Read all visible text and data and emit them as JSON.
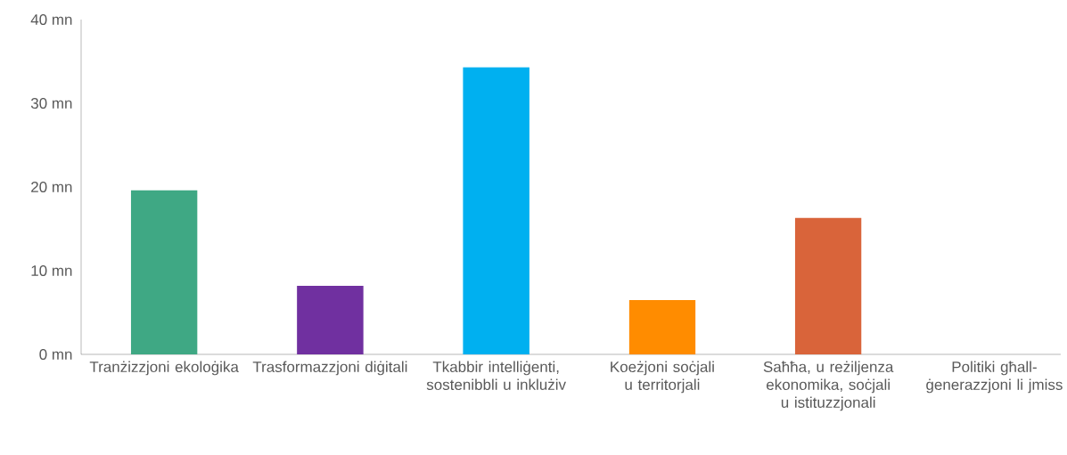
{
  "chart_data": {
    "type": "bar",
    "categories": [
      "Tranżizzjoni ekoloġika",
      "Trasformazzjoni diġitali",
      "Tkabbir intelliġenti, sostenibbli u inklużiv",
      "Koeżjoni soċjali u territorjali",
      "Saħħa, u reżiljenza ekonomika, soċjali u istituzzjonali",
      "Politiki għall-ġenerazzjoni li jmiss"
    ],
    "values": [
      19.6,
      8.2,
      34.3,
      6.5,
      16.3,
      0
    ],
    "colors": [
      "#3fa884",
      "#7030a0",
      "#00b0f0",
      "#ff8c00",
      "#d9643a",
      "#d9643a"
    ],
    "ylim": [
      0,
      40
    ],
    "yticks": [
      {
        "value": 0,
        "label": "0 mn"
      },
      {
        "value": 10,
        "label": "10 mn"
      },
      {
        "value": 20,
        "label": "20 mn"
      },
      {
        "value": 30,
        "label": "30 mn"
      },
      {
        "value": 40,
        "label": "40 mn"
      }
    ]
  }
}
